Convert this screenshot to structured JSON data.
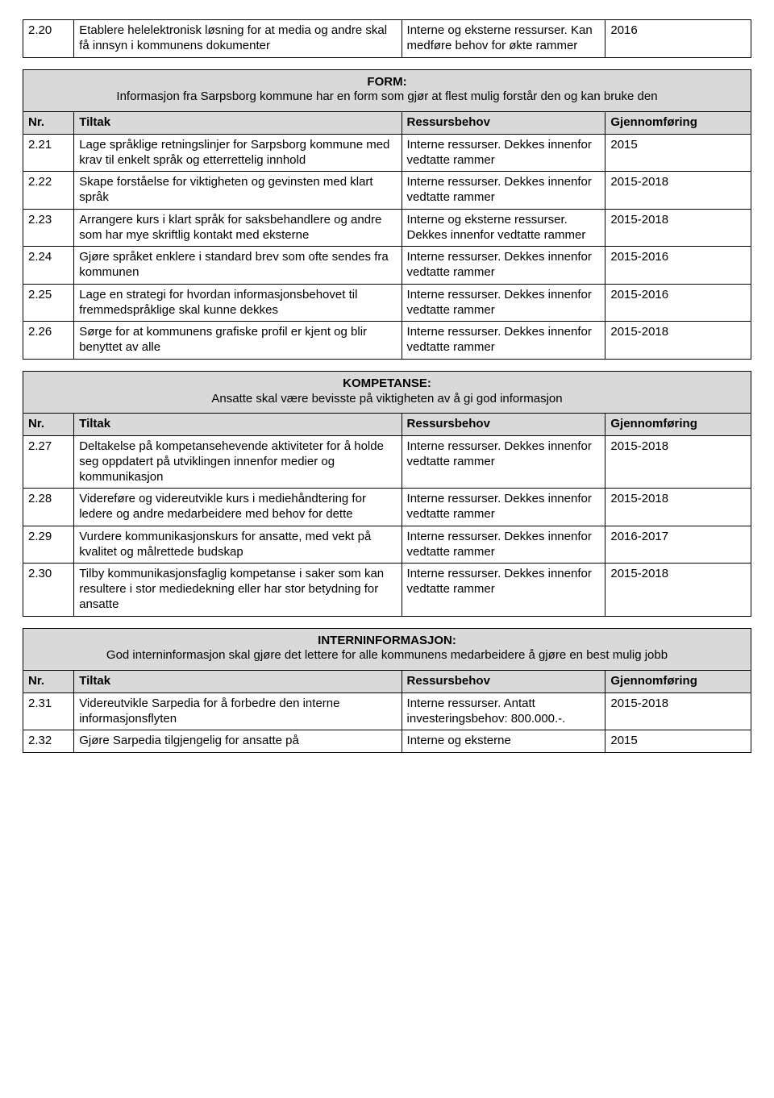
{
  "top": {
    "nr": "2.20",
    "tiltak": "Etablere helelektronisk løsning for at media og andre skal få innsyn i kommunens dokumenter",
    "ressurs": "Interne og eksterne ressurser. Kan medføre behov for økte rammer",
    "gj": "2016"
  },
  "form": {
    "title": "FORM:",
    "sub": "Informasjon fra Sarpsborg kommune har en form som gjør at flest mulig forstår den og kan bruke den",
    "head": {
      "nr": "Nr.",
      "tiltak": "Tiltak",
      "ressurs": "Ressursbehov",
      "gj": "Gjennomføring"
    },
    "rows": [
      {
        "nr": "2.21",
        "tiltak": "Lage språklige retningslinjer for Sarpsborg kommune med krav til enkelt språk og etterrettelig innhold",
        "ressurs": "Interne ressurser. Dekkes innenfor vedtatte rammer",
        "gj": "2015"
      },
      {
        "nr": "2.22",
        "tiltak": "Skape forståelse for viktigheten og gevinsten med klart språk",
        "ressurs": "Interne ressurser. Dekkes innenfor vedtatte rammer",
        "gj": "2015-2018"
      },
      {
        "nr": "2.23",
        "tiltak": "Arrangere kurs i klart språk for saksbehandlere og andre som har mye skriftlig kontakt med eksterne",
        "ressurs": "Interne og eksterne ressurser. Dekkes innenfor vedtatte rammer",
        "gj": "2015-2018"
      },
      {
        "nr": "2.24",
        "tiltak": "Gjøre språket enklere i standard brev som ofte sendes fra kommunen",
        "ressurs": "Interne ressurser. Dekkes innenfor vedtatte rammer",
        "gj": "2015-2016"
      },
      {
        "nr": "2.25",
        "tiltak": "Lage en strategi for hvordan informasjonsbehovet til fremmedspråklige skal kunne dekkes",
        "ressurs": "Interne ressurser. Dekkes innenfor vedtatte rammer",
        "gj": "2015-2016"
      },
      {
        "nr": "2.26",
        "tiltak": "Sørge for at kommunens grafiske profil er kjent og blir benyttet av alle",
        "ressurs": "Interne ressurser. Dekkes innenfor vedtatte rammer",
        "gj": "2015-2018"
      }
    ]
  },
  "kompetanse": {
    "title": "KOMPETANSE:",
    "sub": "Ansatte skal være bevisste på viktigheten av å gi god informasjon",
    "head": {
      "nr": "Nr.",
      "tiltak": "Tiltak",
      "ressurs": "Ressursbehov",
      "gj": "Gjennomføring"
    },
    "rows": [
      {
        "nr": "2.27",
        "tiltak": "Deltakelse på kompetansehevende aktiviteter for å holde seg oppdatert på utviklingen innenfor medier og kommunikasjon",
        "ressurs": "Interne ressurser. Dekkes innenfor vedtatte rammer",
        "gj": "2015-2018"
      },
      {
        "nr": "2.28",
        "tiltak": "Videreføre og videreutvikle kurs i mediehåndtering for ledere og andre medarbeidere med behov for dette",
        "ressurs": "Interne ressurser. Dekkes innenfor vedtatte rammer",
        "gj": "2015-2018"
      },
      {
        "nr": "2.29",
        "tiltak": "Vurdere kommunikasjonskurs for ansatte, med vekt på kvalitet og målrettede budskap",
        "ressurs": "Interne ressurser. Dekkes innenfor vedtatte rammer",
        "gj": "2016-2017"
      },
      {
        "nr": "2.30",
        "tiltak": "Tilby kommunikasjonsfaglig kompetanse i saker som kan resultere i stor mediedekning eller har stor betydning for ansatte",
        "ressurs": "Interne ressurser. Dekkes innenfor vedtatte rammer",
        "gj": "2015-2018"
      }
    ]
  },
  "intern": {
    "title": "INTERNINFORMASJON:",
    "sub": "God interninformasjon skal gjøre det lettere for alle kommunens medarbeidere å gjøre en best mulig jobb",
    "head": {
      "nr": "Nr.",
      "tiltak": "Tiltak",
      "ressurs": "Ressursbehov",
      "gj": "Gjennomføring"
    },
    "rows": [
      {
        "nr": "2.31",
        "tiltak": "Videreutvikle Sarpedia for å forbedre den interne informasjonsflyten",
        "ressurs": "Interne ressurser. Antatt investeringsbehov: 800.000.-.",
        "gj": "2015-2018"
      },
      {
        "nr": "2.32",
        "tiltak": "Gjøre Sarpedia tilgjengelig for ansatte på",
        "ressurs": "Interne og eksterne",
        "gj": "2015"
      }
    ]
  }
}
